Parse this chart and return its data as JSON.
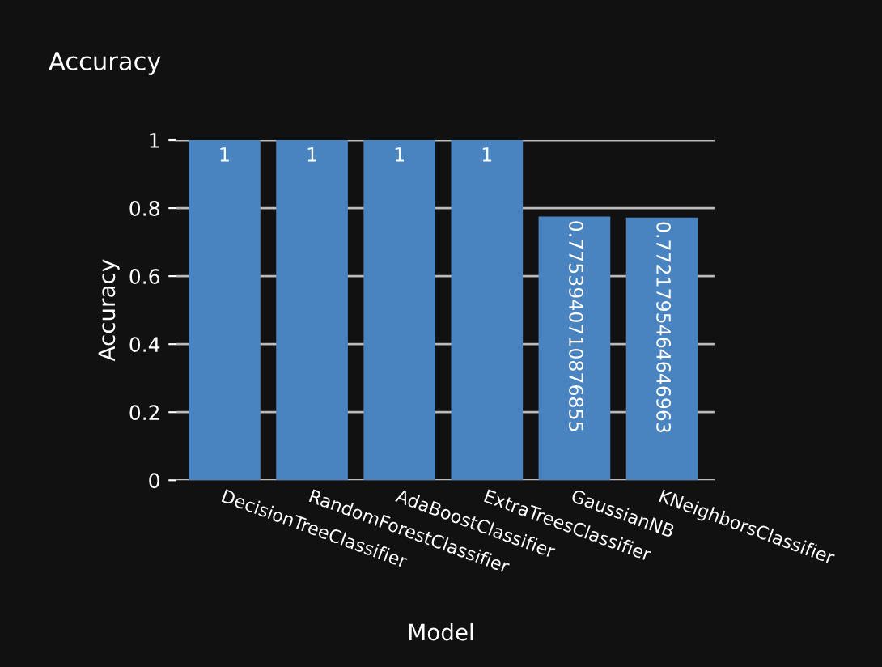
{
  "chart_data": {
    "type": "bar",
    "title": "Accuracy",
    "xlabel": "Model",
    "ylabel": "Accuracy",
    "categories": [
      "DecisionTreeClassifier",
      "RandomForestClassifier",
      "AdaBoostClassifier",
      "ExtraTreesClassifier",
      "GaussianNB",
      "KNeighborsClassifier"
    ],
    "values": [
      1,
      1,
      1,
      1,
      0.7753940710876855,
      0.7721795464646963
    ],
    "color": "#4a84c0",
    "ylim": [
      0,
      1
    ],
    "yticks": [
      0,
      0.2,
      0.4,
      0.6,
      0.8,
      1
    ],
    "grid": "y",
    "data_labels": true
  }
}
